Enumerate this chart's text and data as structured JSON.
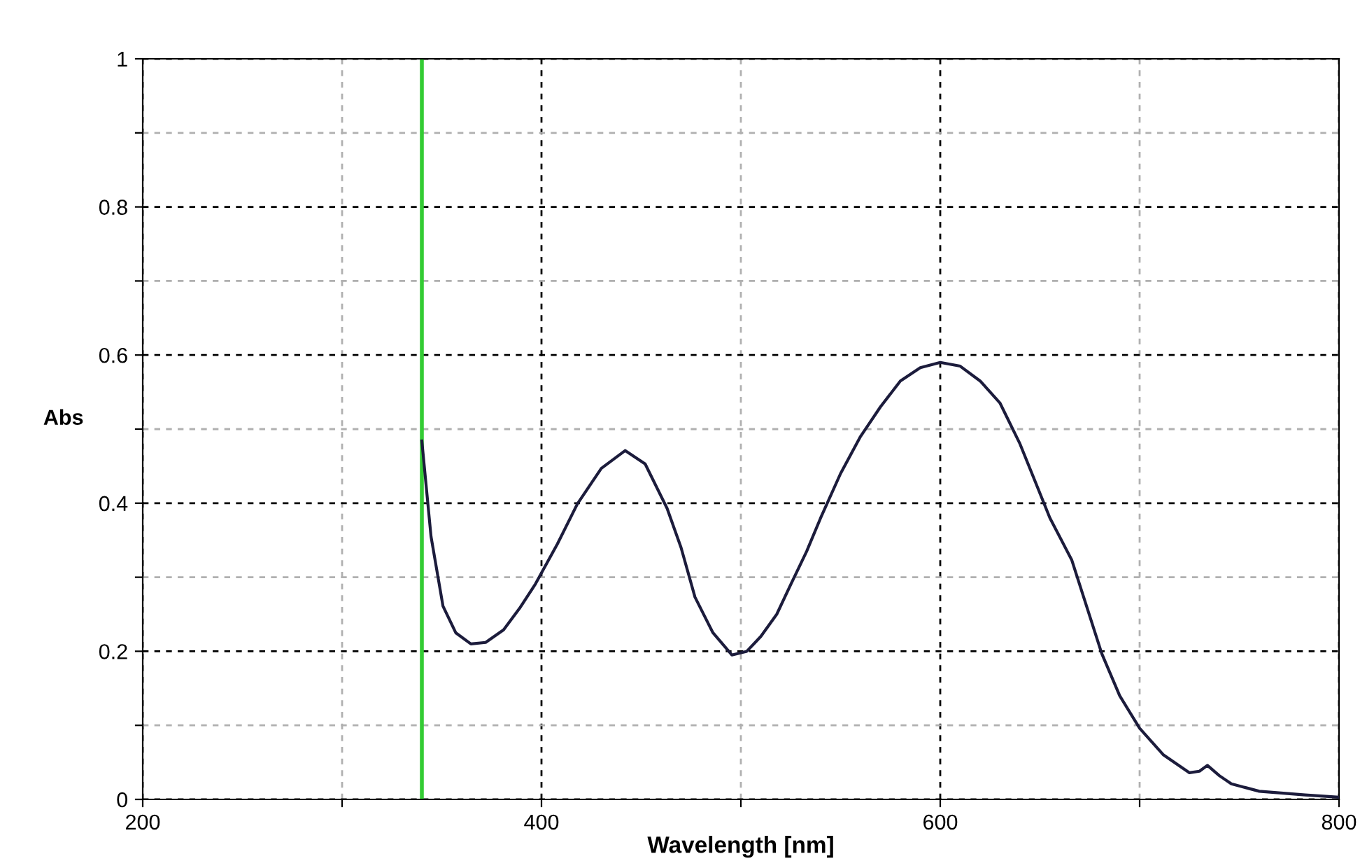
{
  "chart_data": {
    "type": "line",
    "xlabel": "Wavelength [nm]",
    "ylabel": "Abs",
    "series": [
      {
        "color": "#1c1c3c",
        "x": [
          340,
          344.6,
          350.6,
          357,
          364.6,
          372,
          381,
          389,
          397,
          408,
          418,
          430,
          442,
          452,
          463,
          470,
          477,
          486,
          495.5,
          503,
          510,
          518,
          525,
          533,
          540,
          550,
          560,
          570,
          580,
          590,
          600,
          610,
          620,
          630,
          640,
          646,
          655,
          666,
          681,
          690,
          700,
          712,
          725,
          730,
          734,
          740,
          746,
          760,
          783,
          800
        ],
        "values": [
          0.484,
          0.355,
          0.261,
          0.225,
          0.21,
          0.212,
          0.229,
          0.258,
          0.291,
          0.345,
          0.399,
          0.447,
          0.471,
          0.453,
          0.393,
          0.34,
          0.273,
          0.225,
          0.195,
          0.2,
          0.22,
          0.25,
          0.29,
          0.335,
          0.38,
          0.44,
          0.49,
          0.53,
          0.565,
          0.583,
          0.59,
          0.585,
          0.565,
          0.535,
          0.48,
          0.44,
          0.38,
          0.323,
          0.197,
          0.14,
          0.096,
          0.06,
          0.036,
          0.038,
          0.046,
          0.032,
          0.021,
          0.011,
          0.006,
          0.003
        ]
      }
    ],
    "xlim": [
      200,
      800
    ],
    "ylim": [
      0,
      1
    ],
    "xticks": [
      200,
      {
        "value": 300,
        "label": null
      },
      400,
      {
        "value": 500,
        "label": null
      },
      600,
      {
        "value": 700,
        "label": null
      },
      800
    ],
    "yticks": [
      0,
      {
        "value": 0.1,
        "label": null
      },
      0.2,
      {
        "value": 0.3,
        "label": null
      },
      0.4,
      {
        "value": 0.5,
        "label": null
      },
      0.6,
      {
        "value": 0.7,
        "label": null
      },
      0.8,
      {
        "value": 0.9,
        "label": null
      },
      1
    ],
    "grid": true,
    "legend": false,
    "line_style": "solid",
    "ref_lines": [
      {
        "axis": "x",
        "value": 340,
        "color": "#33cc33"
      }
    ]
  }
}
